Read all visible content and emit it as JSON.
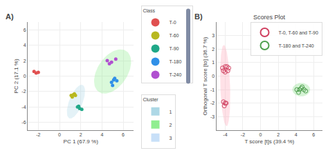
{
  "chart_data": [
    {
      "type": "scatter",
      "annotations": [
        "A)"
      ],
      "xlabel": "PC 1 (67.9 %)",
      "ylabel": "PC 2 (17.1 %)",
      "xlim": [
        -3,
        7
      ],
      "ylim": [
        -7,
        7
      ],
      "xticks": [
        -2,
        0,
        2,
        4,
        6
      ],
      "yticks": [
        -6,
        -4,
        -2,
        0,
        2,
        4,
        6
      ],
      "grid": true,
      "legend": "right",
      "marker": "circle",
      "legend_title": "Class",
      "series": [
        {
          "name": "T-0",
          "color": "#e05050",
          "x": [
            -2.4,
            -2.0,
            -2.2
          ],
          "y": [
            0.6,
            0.5,
            0.4
          ]
        },
        {
          "name": "T-60",
          "color": "#b8b820",
          "x": [
            1.1,
            1.4,
            1.2,
            1.5,
            1.3
          ],
          "y": [
            -2.5,
            -2.3,
            -2.7,
            -2.5,
            -2.4
          ]
        },
        {
          "name": "T-90",
          "color": "#20a888",
          "x": [
            1.7,
            1.9,
            2.1,
            1.8
          ],
          "y": [
            -4.0,
            -4.2,
            -4.3,
            -3.9
          ]
        },
        {
          "name": "T-180",
          "color": "#3090e8",
          "x": [
            4.9,
            5.1,
            5.0,
            5.2,
            5.4
          ],
          "y": [
            -0.8,
            -0.5,
            -1.2,
            -0.3,
            -0.6
          ]
        },
        {
          "name": "T-240",
          "color": "#b050d0",
          "x": [
            4.5,
            4.9,
            5.3,
            4.7
          ],
          "y": [
            2.0,
            1.8,
            2.2,
            1.6
          ]
        }
      ],
      "clusters": {
        "title": "Cluster",
        "entries": [
          {
            "name": "1",
            "color": "#add8e6",
            "center": [
              1.55,
              -3.3
            ],
            "width": 1.3,
            "height": 4.5,
            "angle": -15
          },
          {
            "name": "2",
            "color": "#90ee90",
            "center": [
              5.0,
              0.6
            ],
            "width": 3.0,
            "height": 6.0,
            "angle": -20
          },
          {
            "name": "3",
            "color": "#c8e0f8"
          }
        ]
      }
    },
    {
      "type": "scatter",
      "title": "Scores Plot",
      "annotations": [
        "B)"
      ],
      "xlabel": "T score [t]s (39.4 %)",
      "ylabel": "Orthogonal T score [to] (36.7 %)",
      "xlim": [
        -5,
        7
      ],
      "ylim": [
        -4,
        4
      ],
      "xticks": [
        -4,
        -2,
        0,
        2,
        4,
        6
      ],
      "yticks": [
        -3,
        -2,
        -1,
        0,
        1,
        2,
        3
      ],
      "grid": true,
      "legend": "upper right",
      "marker": "open circle",
      "series": [
        {
          "name": "T-0, T-60 and T-90",
          "color": "#d04060",
          "x": [
            -4.3,
            -4.0,
            -3.8,
            -3.6,
            -4.2,
            -4.0,
            -3.7,
            -4.2,
            -4.0,
            -4.1,
            -3.9
          ],
          "y": [
            0.6,
            0.7,
            0.7,
            0.6,
            0.4,
            0.3,
            0.4,
            -1.9,
            -2.0,
            -2.2,
            -2.0
          ]
        },
        {
          "name": "T-180 and T-240",
          "color": "#50a050",
          "x": [
            4.1,
            4.4,
            4.6,
            4.9,
            4.3,
            5.1,
            4.7
          ],
          "y": [
            -1.0,
            -1.0,
            -0.9,
            -1.0,
            -1.2,
            -1.1,
            -0.8
          ]
        }
      ],
      "ellipses": [
        {
          "color": "#ffaabb",
          "center": [
            -4.0,
            -0.7
          ],
          "width": 1.1,
          "height": 6.0,
          "angle": 3
        },
        {
          "color": "#88dd88",
          "center": [
            4.6,
            -1.0
          ],
          "width": 2.0,
          "height": 1.0,
          "angle": 0
        }
      ]
    }
  ]
}
